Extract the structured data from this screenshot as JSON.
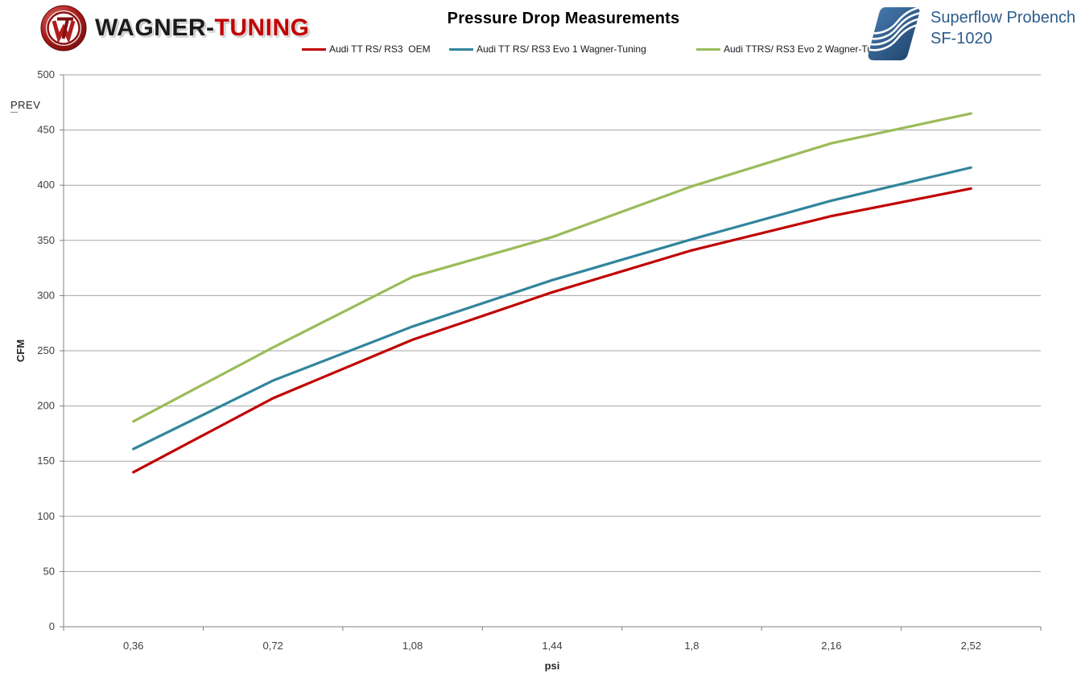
{
  "header": {
    "brand": {
      "part1": "WAGNER-",
      "part2": "TUNING"
    },
    "superflow": {
      "line1": "Superflow Probench",
      "line2": "SF-1020"
    }
  },
  "prev_label": "PREV",
  "colors": {
    "oem_red": "#c00000",
    "evo1_blue": "#31859c",
    "evo2_green": "#9bbb59",
    "gridline": "#a6a6a6",
    "axis": "#808080",
    "tick_text": "#404040",
    "superflow_blue": "#2b5c8a"
  },
  "chart_data": {
    "type": "line",
    "title": "Pressure Drop Measurements",
    "xlabel": "psi",
    "ylabel": "CFM",
    "categories": [
      "0,36",
      "0,72",
      "1,08",
      "1,44",
      "1,8",
      "2,16",
      "2,52"
    ],
    "x_values": [
      0.36,
      0.72,
      1.08,
      1.44,
      1.8,
      2.16,
      2.52
    ],
    "ylim": [
      0,
      500
    ],
    "y_tick_step": 50,
    "grid": true,
    "legend_position": "top",
    "series": [
      {
        "name": "Audi TT RS/ RS3  OEM",
        "color": "#c00000",
        "values": [
          140,
          207,
          260,
          303,
          341,
          372,
          397
        ]
      },
      {
        "name": "Audi TT RS/ RS3 Evo 1 Wagner-Tuning",
        "color": "#31859c",
        "values": [
          161,
          223,
          272,
          314,
          351,
          386,
          416
        ]
      },
      {
        "name": "Audi TTRS/ RS3 Evo 2 Wagner-Tuning",
        "color": "#9bbb59",
        "values": [
          186,
          253,
          317,
          353,
          399,
          438,
          465
        ]
      }
    ]
  }
}
